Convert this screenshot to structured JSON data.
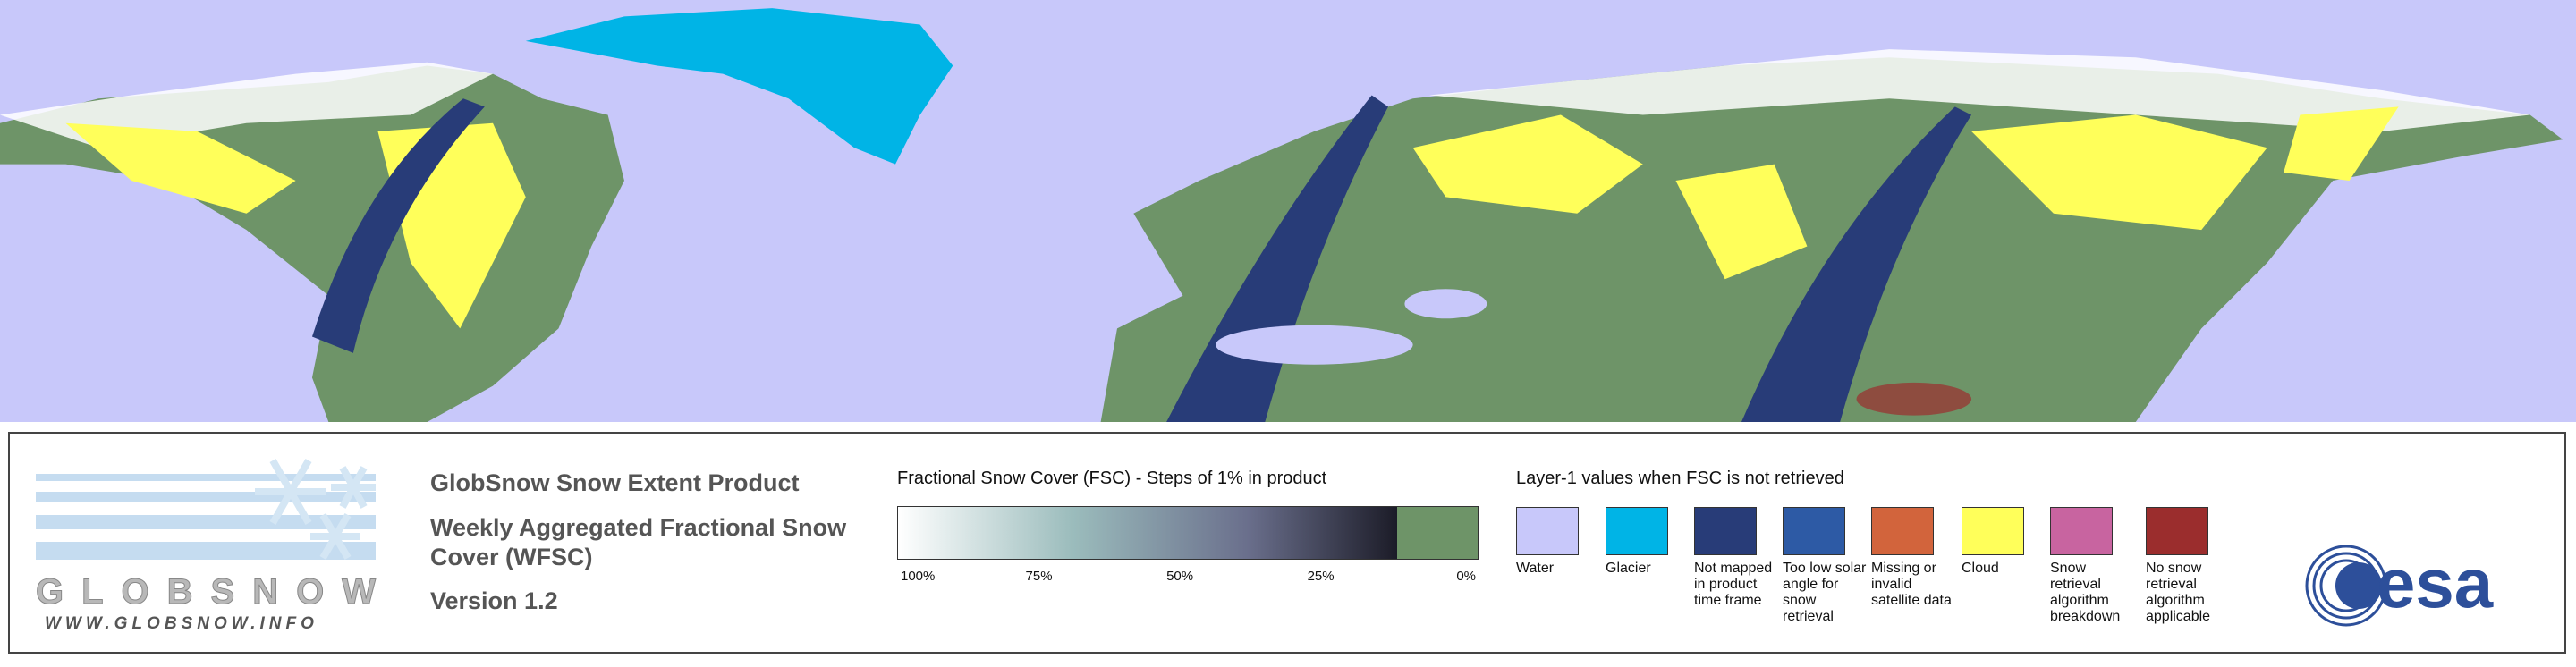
{
  "header": {
    "product": "GlobSnow Snow Extent Product",
    "subtitle": "Weekly Aggregated Fractional Snow Cover (WFSC)",
    "version": "Version 1.2"
  },
  "logo": {
    "name": "GLOBSNOW",
    "url": "WWW.GLOBSNOW.INFO"
  },
  "fsc_legend": {
    "title": "Fractional Snow Cover (FSC) - Steps of 1% in product",
    "ticks": [
      "100%",
      "75%",
      "50%",
      "25%",
      "0%"
    ]
  },
  "layer1_legend": {
    "title": "Layer-1 values when FSC is not retrieved",
    "classes": [
      {
        "label": "Water",
        "color": "#c8c8fa"
      },
      {
        "label": "Glacier",
        "color": "#00b4e6"
      },
      {
        "label": "Not mapped in product time frame",
        "color": "#283c78"
      },
      {
        "label": "Too low solar angle for snow retrieval",
        "color": "#2d5aa5"
      },
      {
        "label": "Missing or invalid satellite data",
        "color": "#d2643c"
      },
      {
        "label": "Cloud",
        "color": "#ffff5a"
      },
      {
        "label": "Snow retrieval algorithm breakdown",
        "color": "#c864a0"
      },
      {
        "label": "No snow retrieval algorithm applicable",
        "color": "#9b2d2d"
      }
    ]
  },
  "esa": "esa"
}
